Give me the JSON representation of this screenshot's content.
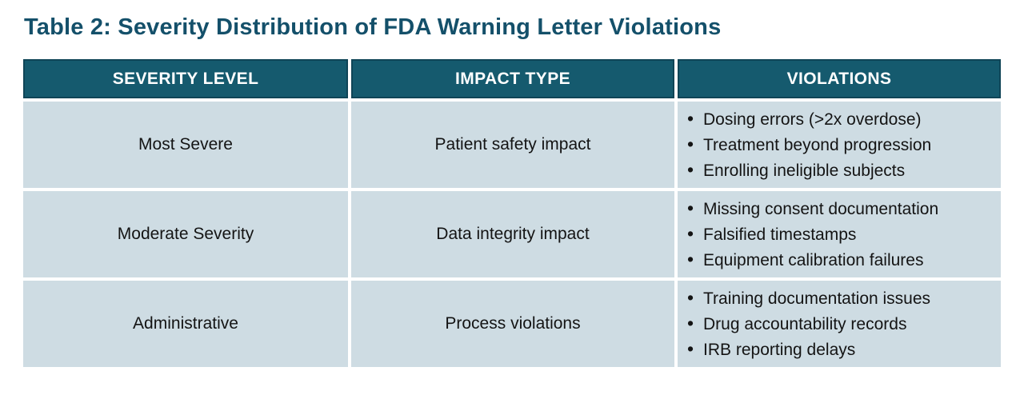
{
  "title": "Table 2: Severity Distribution of FDA Warning Letter Violations",
  "colors": {
    "title_text": "#14506a",
    "header_bg": "#155a6e",
    "header_border": "#0f4557",
    "header_text": "#ffffff",
    "row_bg": "#cedce3",
    "body_text": "#141414",
    "page_bg": "#ffffff"
  },
  "table": {
    "headers": [
      "SEVERITY LEVEL",
      "IMPACT TYPE",
      "VIOLATIONS"
    ],
    "rows": [
      {
        "severity": "Most Severe",
        "impact": "Patient safety impact",
        "violations": [
          "Dosing errors (>2x overdose)",
          "Treatment beyond progression",
          "Enrolling ineligible subjects"
        ]
      },
      {
        "severity": "Moderate Severity",
        "impact": "Data integrity impact",
        "violations": [
          "Missing consent documentation",
          "Falsified timestamps",
          "Equipment calibration failures"
        ]
      },
      {
        "severity": "Administrative",
        "impact": "Process violations",
        "violations": [
          "Training documentation issues",
          "Drug accountability records",
          "IRB reporting delays"
        ]
      }
    ]
  }
}
